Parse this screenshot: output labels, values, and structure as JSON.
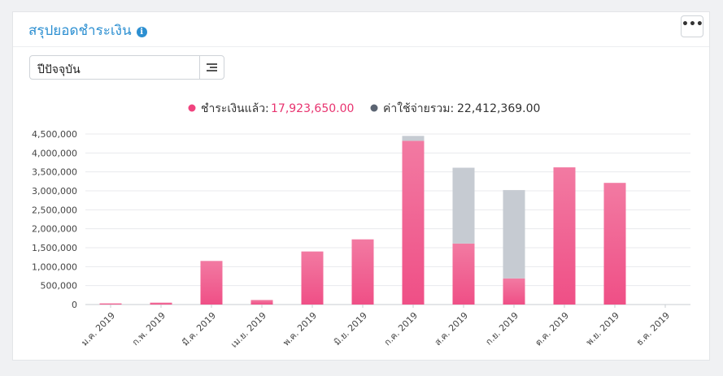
{
  "header": {
    "title": "สรุปยอดชำระเงิน",
    "info_icon": "info-icon",
    "more_label": "•••"
  },
  "filter": {
    "selected": "ปีปัจจุบัน",
    "icon": "list-icon"
  },
  "colors": {
    "paid": "#f0528a",
    "expense": "#c6cbd2",
    "accent": "#2c8fd1",
    "paid_legend_dot": "#f0437e",
    "expense_legend_dot": "#5b6472"
  },
  "legend": {
    "paid_label": "ชำระเงินแล้ว:",
    "paid_value": "17,923,650.00",
    "expense_label": "ค่าใช้จ่ายรวม:",
    "expense_value": "22,412,369.00"
  },
  "chart_data": {
    "type": "bar",
    "stacked": true,
    "categories": [
      "ม.ค. 2019",
      "ก.พ. 2019",
      "มี.ค. 2019",
      "เม.ย. 2019",
      "พ.ค. 2019",
      "มิ.ย. 2019",
      "ก.ค. 2019",
      "ส.ค. 2019",
      "ก.ย. 2019",
      "ต.ค. 2019",
      "พ.ย. 2019",
      "ธ.ค. 2019"
    ],
    "series": [
      {
        "name": "ชำระเงินแล้ว",
        "values": [
          30000,
          50000,
          1150000,
          120000,
          1400000,
          1720000,
          4320000,
          1610000,
          690000,
          3620000,
          3210000,
          0
        ]
      },
      {
        "name": "ค่าใช้จ่ายรวม",
        "values": [
          0,
          0,
          0,
          0,
          0,
          0,
          130000,
          2000000,
          2330000,
          0,
          0,
          0
        ]
      }
    ],
    "yticks": [
      "0",
      "500,000",
      "1,000,000",
      "1,500,000",
      "2,000,000",
      "2,500,000",
      "3,000,000",
      "3,500,000",
      "4,000,000",
      "4,500,000"
    ],
    "ylim": [
      0,
      4500000
    ],
    "grid": true,
    "legend_position": "top-center"
  }
}
